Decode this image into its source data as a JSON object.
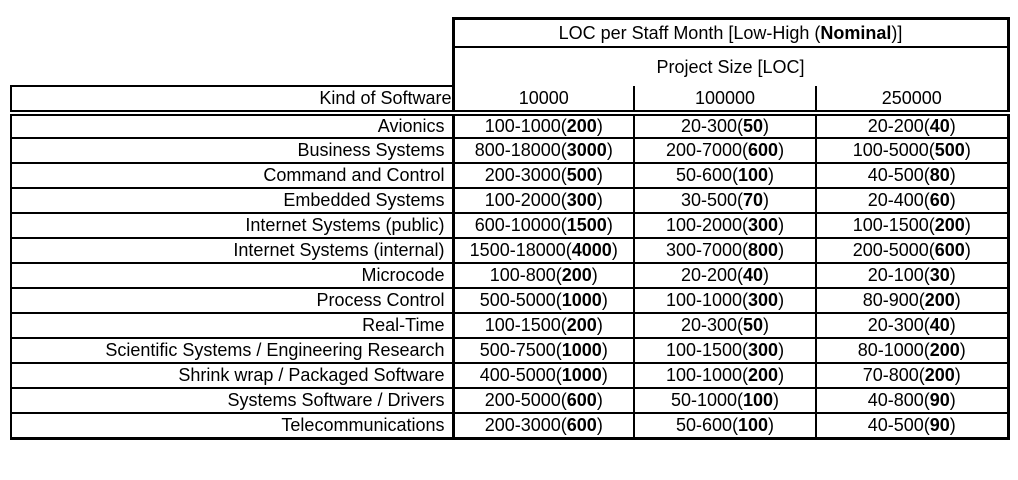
{
  "page": {
    "background_color": "#ffffff",
    "border_color": "#000000",
    "text_color": "#000000"
  },
  "table": {
    "title": {
      "prefix": "LOC per Staff Month [Low-High (",
      "bold": "Nominal",
      "suffix": ")]"
    },
    "subtitle": "Project Size [LOC]",
    "kind_header": "Kind of Software",
    "size_headers": [
      "10000",
      "100000",
      "250000"
    ],
    "punctuation": {
      "open": "(",
      "close": ")"
    },
    "rows": [
      {
        "label": "Avionics",
        "cells": [
          {
            "range": "100-1000",
            "nominal": "200"
          },
          {
            "range": "20-300",
            "nominal": "50"
          },
          {
            "range": "20-200",
            "nominal": "40"
          }
        ]
      },
      {
        "label": "Business Systems",
        "cells": [
          {
            "range": "800-18000",
            "nominal": "3000"
          },
          {
            "range": "200-7000",
            "nominal": "600"
          },
          {
            "range": "100-5000",
            "nominal": "500"
          }
        ]
      },
      {
        "label": "Command and Control",
        "cells": [
          {
            "range": "200-3000",
            "nominal": "500"
          },
          {
            "range": "50-600",
            "nominal": "100"
          },
          {
            "range": "40-500",
            "nominal": "80"
          }
        ]
      },
      {
        "label": "Embedded Systems",
        "cells": [
          {
            "range": "100-2000",
            "nominal": "300"
          },
          {
            "range": "30-500",
            "nominal": "70"
          },
          {
            "range": "20-400",
            "nominal": "60"
          }
        ]
      },
      {
        "label": "Internet Systems (public)",
        "cells": [
          {
            "range": "600-10000",
            "nominal": "1500"
          },
          {
            "range": "100-2000",
            "nominal": "300"
          },
          {
            "range": "100-1500",
            "nominal": "200"
          }
        ]
      },
      {
        "label": "Internet Systems (internal)",
        "cells": [
          {
            "range": "1500-18000",
            "nominal": "4000"
          },
          {
            "range": "300-7000",
            "nominal": "800"
          },
          {
            "range": "200-5000",
            "nominal": "600"
          }
        ]
      },
      {
        "label": "Microcode",
        "cells": [
          {
            "range": "100-800",
            "nominal": "200"
          },
          {
            "range": "20-200",
            "nominal": "40"
          },
          {
            "range": "20-100",
            "nominal": "30"
          }
        ]
      },
      {
        "label": "Process Control",
        "cells": [
          {
            "range": "500-5000",
            "nominal": "1000"
          },
          {
            "range": "100-1000",
            "nominal": "300"
          },
          {
            "range": "80-900",
            "nominal": "200"
          }
        ]
      },
      {
        "label": "Real-Time",
        "cells": [
          {
            "range": "100-1500",
            "nominal": "200"
          },
          {
            "range": "20-300",
            "nominal": "50"
          },
          {
            "range": "20-300",
            "nominal": "40"
          }
        ]
      },
      {
        "label": "Scientific Systems / Engineering Research",
        "cells": [
          {
            "range": "500-7500",
            "nominal": "1000"
          },
          {
            "range": "100-1500",
            "nominal": "300"
          },
          {
            "range": "80-1000",
            "nominal": "200"
          }
        ]
      },
      {
        "label": "Shrink wrap / Packaged Software",
        "cells": [
          {
            "range": "400-5000",
            "nominal": "1000"
          },
          {
            "range": "100-1000",
            "nominal": "200"
          },
          {
            "range": "70-800",
            "nominal": "200"
          }
        ]
      },
      {
        "label": "Systems Software / Drivers",
        "cells": [
          {
            "range": "200-5000",
            "nominal": "600"
          },
          {
            "range": "50-1000",
            "nominal": "100"
          },
          {
            "range": "40-800",
            "nominal": "90"
          }
        ]
      },
      {
        "label": "Telecommunications",
        "cells": [
          {
            "range": "200-3000",
            "nominal": "600"
          },
          {
            "range": "50-600",
            "nominal": "100"
          },
          {
            "range": "40-500",
            "nominal": "90"
          }
        ]
      }
    ]
  }
}
